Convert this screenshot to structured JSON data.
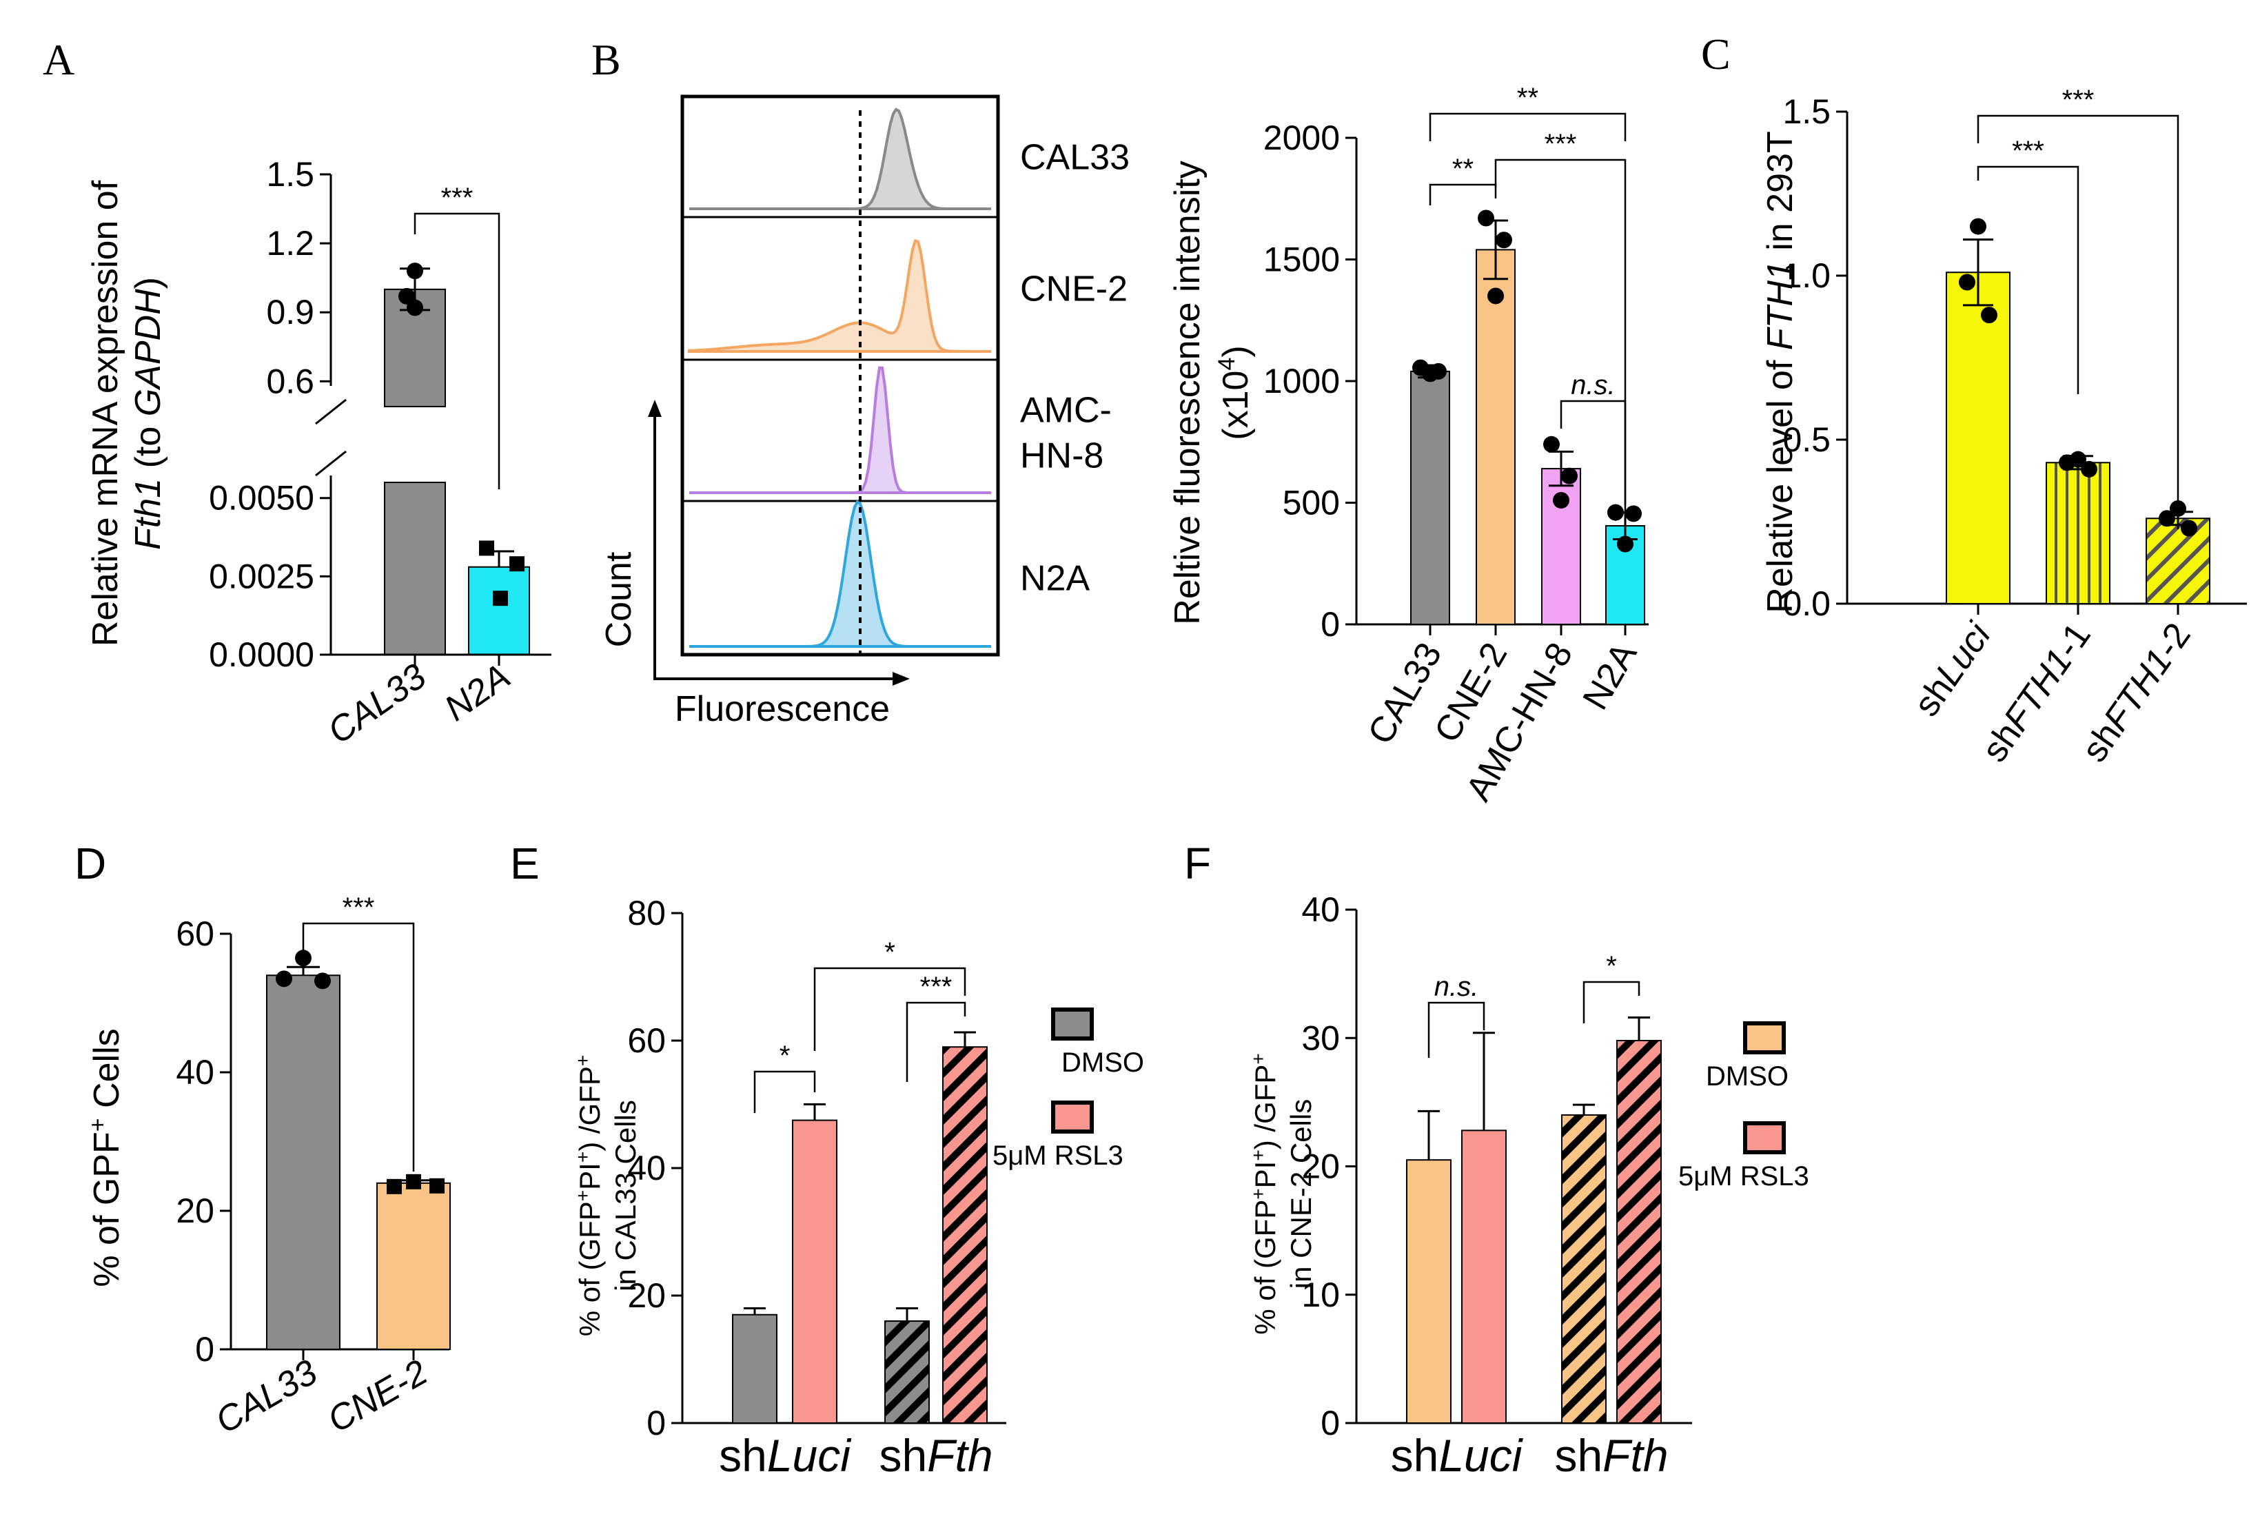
{
  "panel_letters": [
    "A",
    "B",
    "C",
    "D",
    "E",
    "F"
  ],
  "colors": {
    "gray": "#8c8c8c",
    "cyan": "#1fe8f4",
    "orange": "#f8c486",
    "pink": "#f2a2f2",
    "yellow": "#f6f608",
    "salmon": "#f89690",
    "flow_gray": "#8a8a8a",
    "flow_orange": "#f4a762",
    "flow_purple": "#b77ee0",
    "flow_blue": "#2fa6dd"
  },
  "chart_data": [
    {
      "panel": "A",
      "type": "bar",
      "ylabel_parts": [
        "Relative mRNA expression of",
        "Fth1",
        " (to ",
        "GAPDH",
        ")"
      ],
      "categories": [
        "CAL33",
        "N2A"
      ],
      "values": [
        1.0,
        0.0028
      ],
      "errors": [
        0.09,
        0.0005
      ],
      "points": [
        [
          1.08,
          0.97,
          0.92
        ],
        [
          0.0034,
          0.0029,
          0.0018
        ]
      ],
      "upper_segment": {
        "ylim": [
          0.55,
          1.5
        ],
        "ticks": [
          "0.6",
          "0.9",
          "1.2",
          "1.5"
        ]
      },
      "lower_segment": {
        "ylim": [
          0,
          0.0055
        ],
        "ticks": [
          "0.0000",
          "0.0025",
          "0.0050"
        ]
      },
      "significance": [
        {
          "pair": [
            "CAL33",
            "N2A"
          ],
          "label": "***"
        }
      ]
    },
    {
      "panel": "B-flow",
      "type": "histogram",
      "title_y": "Count",
      "title_x": "Fluorescence",
      "samples": [
        {
          "name": "CAL33",
          "peak": 0.3
        },
        {
          "name": "CNE-2",
          "peak": 0.35
        },
        {
          "name": "AMC-\nHN-8",
          "label_lines": [
            "AMC-",
            "HN-8"
          ],
          "peak": 0.25
        },
        {
          "name": "N2A",
          "peak": 0.21
        }
      ]
    },
    {
      "panel": "B-bar",
      "type": "bar",
      "ylabel_line1": "Reltive fluorescence intensity",
      "ylabel_line2": "(x10",
      "ylabel_exp": "4",
      "ylabel_close": ")",
      "categories": [
        "CAL33",
        "CNE-2",
        "AMC-HN-8",
        "N2A"
      ],
      "values": [
        1040,
        1540,
        640,
        405
      ],
      "errors": [
        25,
        120,
        70,
        55
      ],
      "points": [
        [
          1055,
          1040,
          1030
        ],
        [
          1670,
          1580,
          1350
        ],
        [
          740,
          610,
          510
        ],
        [
          460,
          455,
          330
        ]
      ],
      "ylim": [
        0,
        2000
      ],
      "ticks": [
        "0",
        "500",
        "1000",
        "1500",
        "2000"
      ],
      "significance": [
        {
          "pair": [
            "CAL33",
            "CNE-2"
          ],
          "label": "**"
        },
        {
          "pair": [
            "CNE-2",
            "N2A"
          ],
          "label": "***"
        },
        {
          "pair": [
            "CAL33",
            "N2A"
          ],
          "label": "**"
        },
        {
          "pair": [
            "AMC-HN-8",
            "N2A"
          ],
          "label": "n.s."
        }
      ]
    },
    {
      "panel": "C",
      "type": "bar",
      "ylabel_parts": [
        "Relative level of ",
        "FTH1",
        " in 293T"
      ],
      "categories": [
        "shLuci",
        "shFTH1-1",
        "shFTH1-2"
      ],
      "category_parts": [
        [
          "sh",
          "Luci"
        ],
        [
          "sh",
          "FTH1",
          "-1"
        ],
        [
          "sh",
          "FTH1",
          "-2"
        ]
      ],
      "values": [
        1.01,
        0.43,
        0.26
      ],
      "errors": [
        0.1,
        0.02,
        0.02
      ],
      "points": [
        [
          1.15,
          0.98,
          0.88
        ],
        [
          0.44,
          0.43,
          0.41
        ],
        [
          0.29,
          0.26,
          0.23
        ]
      ],
      "ylim": [
        0,
        1.5
      ],
      "ticks": [
        "0.0",
        "0.5",
        "1.0",
        "1.5"
      ],
      "significance": [
        {
          "pair": [
            "shLuci",
            "shFTH1-1"
          ],
          "label": "***"
        },
        {
          "pair": [
            "shLuci",
            "shFTH1-2"
          ],
          "label": "***"
        }
      ]
    },
    {
      "panel": "D",
      "type": "bar",
      "ylabel_parts": [
        "% of GPF",
        "+",
        " Cells"
      ],
      "categories": [
        "CAL33",
        "CNE-2"
      ],
      "values": [
        54,
        24
      ],
      "errors": [
        1.2,
        0.4
      ],
      "points": [
        [
          56.5,
          53.5,
          53.2
        ],
        [
          23.5,
          24.2,
          23.6
        ]
      ],
      "ylim": [
        0,
        60
      ],
      "ticks": [
        "0",
        "20",
        "40",
        "60"
      ],
      "significance": [
        {
          "pair": [
            "CAL33",
            "CNE-2"
          ],
          "label": "***"
        }
      ]
    },
    {
      "panel": "E",
      "type": "bar",
      "ylabel_line1": "% of (GFP+PI+) /GFP+",
      "ylabel_line2": "in CAL33 Cells",
      "groups": [
        [
          "sh",
          "Luci"
        ],
        [
          "sh",
          "Fth"
        ]
      ],
      "group_names": [
        "shLuci",
        "shFth"
      ],
      "series": [
        {
          "name": "DMSO",
          "values": [
            17,
            16
          ],
          "errors": [
            1,
            2
          ]
        },
        {
          "name": "5μM  RSL3",
          "values": [
            47.5,
            59
          ],
          "errors": [
            2.5,
            2.3
          ]
        }
      ],
      "ylim": [
        0,
        80
      ],
      "ticks": [
        "0",
        "20",
        "40",
        "60",
        "80"
      ],
      "significance": [
        {
          "pair": [
            "shLuci DMSO",
            "shLuci RSL3"
          ],
          "label": "*"
        },
        {
          "pair": [
            "shFth DMSO",
            "shFth RSL3"
          ],
          "label": "***"
        },
        {
          "pair": [
            "shLuci RSL3",
            "shFth RSL3"
          ],
          "label": "*"
        }
      ]
    },
    {
      "panel": "F",
      "type": "bar",
      "ylabel_line1": "% of (GFP+PI+) /GFP+",
      "ylabel_line2": "in CNE-2 Cells",
      "groups": [
        [
          "sh",
          "Luci"
        ],
        [
          "sh",
          "Fth"
        ]
      ],
      "group_names": [
        "shLuci",
        "shFth"
      ],
      "series": [
        {
          "name": "DMSO",
          "values": [
            20.5,
            24
          ],
          "errors": [
            3.8,
            0.8
          ]
        },
        {
          "name": "5μM  RSL3",
          "values": [
            22.8,
            29.8
          ],
          "errors": [
            7.6,
            1.8
          ]
        }
      ],
      "ylim": [
        0,
        40
      ],
      "ticks": [
        "0",
        "10",
        "20",
        "30",
        "40"
      ],
      "significance": [
        {
          "pair": [
            "shLuci DMSO",
            "shLuci RSL3"
          ],
          "label": "n.s."
        },
        {
          "pair": [
            "shFth DMSO",
            "shFth RSL3"
          ],
          "label": "*"
        }
      ]
    }
  ]
}
